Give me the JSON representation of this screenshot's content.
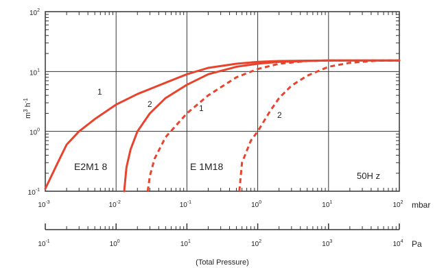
{
  "chart_data": {
    "type": "line",
    "x_scale": "log",
    "y_scale": "log",
    "xlim": [
      0.001,
      100
    ],
    "ylim": [
      0.1,
      100
    ],
    "x_unit": "mbar",
    "x2_unit": "Pa",
    "x2lim": [
      0.1,
      10000
    ],
    "x_ticks": [
      {
        "value": 0.001,
        "base": "10",
        "exp": "-3"
      },
      {
        "value": 0.01,
        "base": "10",
        "exp": "-2"
      },
      {
        "value": 0.1,
        "base": "10",
        "exp": "-1"
      },
      {
        "value": 1,
        "base": "10",
        "exp": "0"
      },
      {
        "value": 10,
        "base": "10",
        "exp": "1"
      },
      {
        "value": 100,
        "base": "10",
        "exp": "2"
      }
    ],
    "x2_ticks": [
      {
        "value": 0.1,
        "base": "10",
        "exp": "-1"
      },
      {
        "value": 1,
        "base": "10",
        "exp": "0"
      },
      {
        "value": 10,
        "base": "10",
        "exp": "1"
      },
      {
        "value": 100,
        "base": "10",
        "exp": "2"
      },
      {
        "value": 1000,
        "base": "10",
        "exp": "3"
      },
      {
        "value": 10000,
        "base": "10",
        "exp": "4"
      }
    ],
    "y_ticks": [
      {
        "value": 0.1,
        "base": "10",
        "exp": "-1"
      },
      {
        "value": 1,
        "base": "10",
        "exp": "0"
      },
      {
        "value": 10,
        "base": "10",
        "exp": "1"
      },
      {
        "value": 100,
        "base": "10",
        "exp": "2"
      }
    ],
    "ylabel_base": "m",
    "ylabel_exp1": "3",
    "ylabel_mid": " h",
    "ylabel_exp2": "-1",
    "xlabel": "(Total Pressure)",
    "grid": true,
    "line_color": "#e8432c",
    "series": [
      {
        "group": "E2M1 8",
        "curve": "1",
        "style": "solid",
        "x": [
          0.001,
          0.0015,
          0.002,
          0.003,
          0.005,
          0.01,
          0.02,
          0.05,
          0.1,
          0.2,
          0.5,
          1,
          2,
          5,
          10,
          100
        ],
        "y": [
          0.11,
          0.3,
          0.6,
          1.0,
          1.6,
          2.8,
          4.2,
          6.5,
          9.0,
          11.5,
          13.5,
          14.5,
          15.0,
          15.2,
          15.3,
          15.3
        ]
      },
      {
        "group": "E2M1 8",
        "curve": "2",
        "style": "solid",
        "x": [
          0.013,
          0.014,
          0.016,
          0.02,
          0.03,
          0.05,
          0.1,
          0.2,
          0.5,
          1,
          2,
          5,
          10,
          100
        ],
        "y": [
          0.1,
          0.25,
          0.5,
          1.0,
          2.0,
          3.6,
          6.0,
          9.0,
          12.0,
          13.5,
          14.5,
          15.0,
          15.3,
          15.3
        ]
      },
      {
        "group": "E 1M18",
        "curve": "1",
        "style": "dashed",
        "x": [
          0.028,
          0.03,
          0.035,
          0.05,
          0.1,
          0.2,
          0.5,
          1,
          2,
          5,
          10,
          100
        ],
        "y": [
          0.1,
          0.18,
          0.35,
          0.8,
          2.0,
          4.0,
          8.0,
          11.0,
          13.5,
          15.0,
          15.3,
          15.3
        ]
      },
      {
        "group": "E 1M18",
        "curve": "2",
        "style": "dashed",
        "x": [
          0.55,
          0.6,
          0.8,
          1,
          1.5,
          2,
          3,
          5,
          10,
          20,
          50,
          100
        ],
        "y": [
          0.1,
          0.3,
          0.7,
          1.0,
          2.2,
          3.6,
          5.8,
          8.5,
          12.0,
          14.0,
          15.2,
          15.3
        ]
      }
    ],
    "annotations": {
      "curve_label_1a": "1",
      "curve_label_2a": "2",
      "curve_label_1b": "1",
      "curve_label_2b": "2",
      "group_label_a": "E2M1 8",
      "group_label_b": "E 1M18",
      "frequency": "50H z"
    }
  }
}
